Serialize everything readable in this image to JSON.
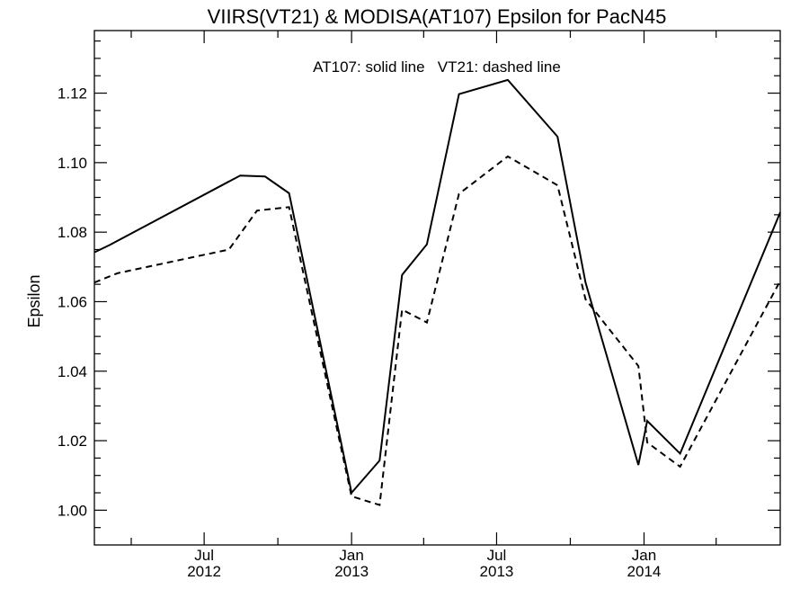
{
  "chart_data": {
    "type": "line",
    "title": "VIIRS(VT21) & MODISA(AT107)  Epsilon for PacN45",
    "legend_text": "AT107: solid line   VT21: dashed line",
    "legend_placement": "top-center",
    "xlabel": "",
    "ylabel": "Epsilon",
    "xlim": [
      "2012-02-15",
      "2014-06-20"
    ],
    "ylim": [
      0.99,
      1.138
    ],
    "grid": false,
    "y_ticks": [
      {
        "value": 1.0,
        "label": "1.00"
      },
      {
        "value": 1.02,
        "label": "1.02"
      },
      {
        "value": 1.04,
        "label": "1.04"
      },
      {
        "value": 1.06,
        "label": "1.06"
      },
      {
        "value": 1.08,
        "label": "1.08"
      },
      {
        "value": 1.1,
        "label": "1.10"
      },
      {
        "value": 1.12,
        "label": "1.12"
      }
    ],
    "x_major_ticks": [
      {
        "date": "2012-07-01",
        "label_top": "Jul",
        "label_bottom": "2012"
      },
      {
        "date": "2013-01-01",
        "label_top": "Jan",
        "label_bottom": "2013"
      },
      {
        "date": "2013-07-01",
        "label_top": "Jul",
        "label_bottom": "2013"
      },
      {
        "date": "2014-01-01",
        "label_top": "Jan",
        "label_bottom": "2014"
      }
    ],
    "x_minor_ticks": [
      "2012-04-01",
      "2012-10-01",
      "2013-04-01",
      "2013-10-01",
      "2014-04-01"
    ],
    "series": [
      {
        "label": "AT107",
        "style": "solid",
        "color": "#000000",
        "points": [
          {
            "x": "2012-02-15",
            "y": 1.0742
          },
          {
            "x": "2012-03-05",
            "y": 1.0763
          },
          {
            "x": "2012-08-15",
            "y": 1.0963
          },
          {
            "x": "2012-09-15",
            "y": 1.096
          },
          {
            "x": "2012-10-15",
            "y": 1.0912
          },
          {
            "x": "2013-01-01",
            "y": 1.005
          },
          {
            "x": "2013-02-05",
            "y": 1.0143
          },
          {
            "x": "2013-03-05",
            "y": 1.0677
          },
          {
            "x": "2013-04-05",
            "y": 1.0765
          },
          {
            "x": "2013-05-15",
            "y": 1.1197
          },
          {
            "x": "2013-07-15",
            "y": 1.1238
          },
          {
            "x": "2013-09-15",
            "y": 1.1075
          },
          {
            "x": "2013-10-20",
            "y": 1.0655
          },
          {
            "x": "2013-12-25",
            "y": 1.013
          },
          {
            "x": "2014-01-05",
            "y": 1.0257
          },
          {
            "x": "2014-02-15",
            "y": 1.0163
          },
          {
            "x": "2014-06-20",
            "y": 1.0857
          }
        ]
      },
      {
        "label": "VT21",
        "style": "dashed",
        "color": "#000000",
        "points": [
          {
            "x": "2012-02-15",
            "y": 1.0655
          },
          {
            "x": "2012-03-15",
            "y": 1.0682
          },
          {
            "x": "2012-08-01",
            "y": 1.075
          },
          {
            "x": "2012-09-05",
            "y": 1.0862
          },
          {
            "x": "2012-10-15",
            "y": 1.0872
          },
          {
            "x": "2013-01-01",
            "y": 1.004
          },
          {
            "x": "2013-02-05",
            "y": 1.0015
          },
          {
            "x": "2013-03-05",
            "y": 1.0577
          },
          {
            "x": "2013-04-05",
            "y": 1.054
          },
          {
            "x": "2013-05-15",
            "y": 1.091
          },
          {
            "x": "2013-07-15",
            "y": 1.1018
          },
          {
            "x": "2013-09-15",
            "y": 1.0935
          },
          {
            "x": "2013-10-20",
            "y": 1.0607
          },
          {
            "x": "2013-12-25",
            "y": 1.0415
          },
          {
            "x": "2014-01-05",
            "y": 1.0195
          },
          {
            "x": "2014-02-15",
            "y": 1.0125
          },
          {
            "x": "2014-06-20",
            "y": 1.066
          }
        ]
      }
    ]
  }
}
